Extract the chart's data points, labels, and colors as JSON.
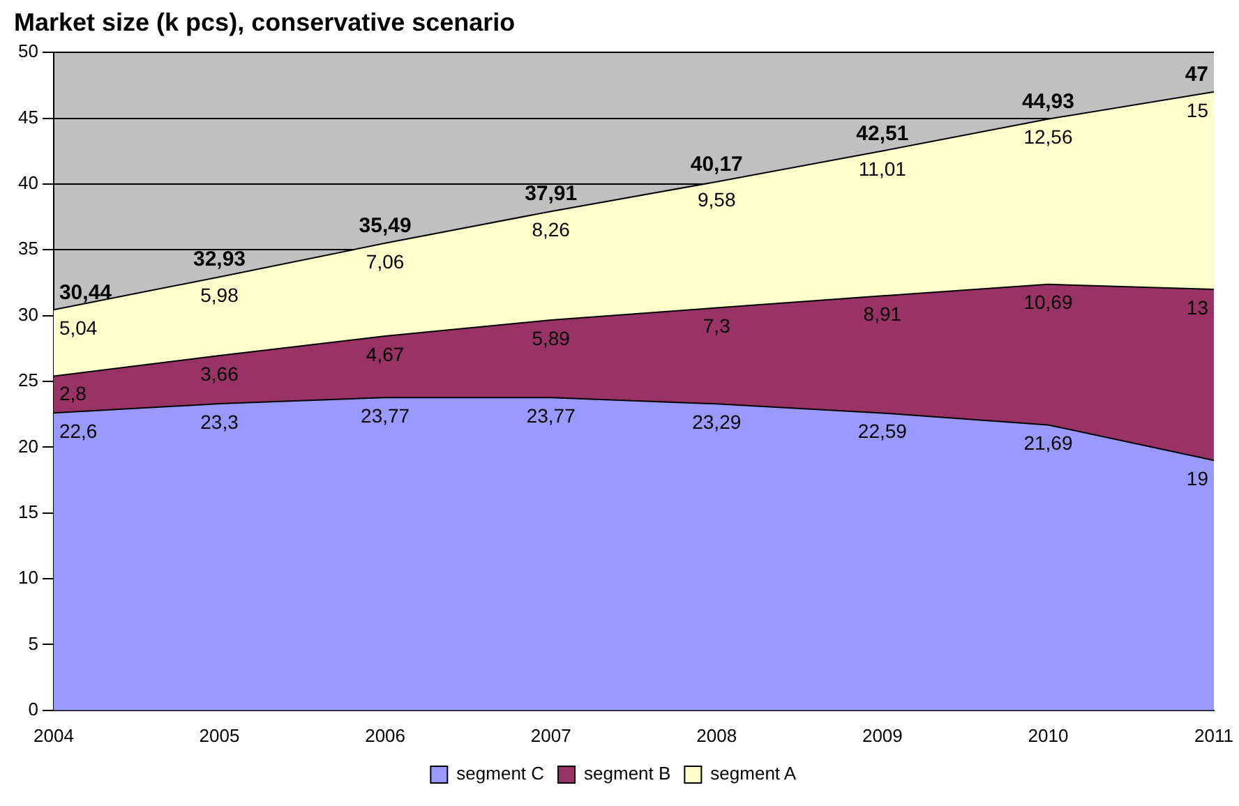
{
  "chart_data": {
    "type": "area",
    "title": "Market size (k pcs), conservative scenario",
    "categories": [
      "2004",
      "2005",
      "2006",
      "2007",
      "2008",
      "2009",
      "2010",
      "2011"
    ],
    "stacked": true,
    "series": [
      {
        "name": "segment C",
        "color": "#9999ff",
        "values": [
          22.6,
          23.3,
          23.77,
          23.77,
          23.29,
          22.59,
          21.69,
          19
        ],
        "value_labels": [
          "22,6",
          "23,3",
          "23,77",
          "23,77",
          "23,29",
          "22,59",
          "21,69",
          "19"
        ]
      },
      {
        "name": "segment B",
        "color": "#993366",
        "values": [
          2.8,
          3.66,
          4.67,
          5.89,
          7.3,
          8.91,
          10.69,
          13
        ],
        "value_labels": [
          "2,8",
          "3,66",
          "4,67",
          "5,89",
          "7,3",
          "8,91",
          "10,69",
          "13"
        ]
      },
      {
        "name": "segment A",
        "color": "#ffffcc",
        "values": [
          5.04,
          5.98,
          7.06,
          8.26,
          9.58,
          11.01,
          12.56,
          15
        ],
        "value_labels": [
          "5,04",
          "5,98",
          "7,06",
          "8,26",
          "9,58",
          "11,01",
          "12,56",
          "15"
        ]
      }
    ],
    "totals": [
      "30,44",
      "32,93",
      "35,49",
      "37,91",
      "40,17",
      "42,51",
      "44,93",
      "47"
    ],
    "ylim": [
      0,
      50
    ],
    "yticks": [
      0,
      5,
      10,
      15,
      20,
      25,
      30,
      35,
      40,
      45,
      50
    ],
    "grid": "y",
    "legend": "bottom"
  }
}
